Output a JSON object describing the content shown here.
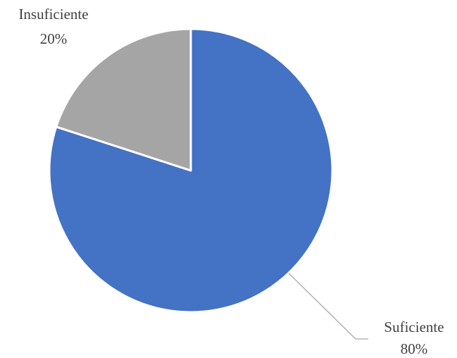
{
  "chart_data": {
    "type": "pie",
    "slices": [
      {
        "label": "Suficiente",
        "value": 80,
        "value_label": "80%",
        "color": "#4472C4"
      },
      {
        "label": "Insuficiente",
        "value": 20,
        "value_label": "20%",
        "color": "#A5A5A5"
      }
    ],
    "start_angle_deg": 0,
    "direction": "clockwise",
    "data_labels": "category and percent, outside end",
    "legend": "none",
    "title": ""
  }
}
